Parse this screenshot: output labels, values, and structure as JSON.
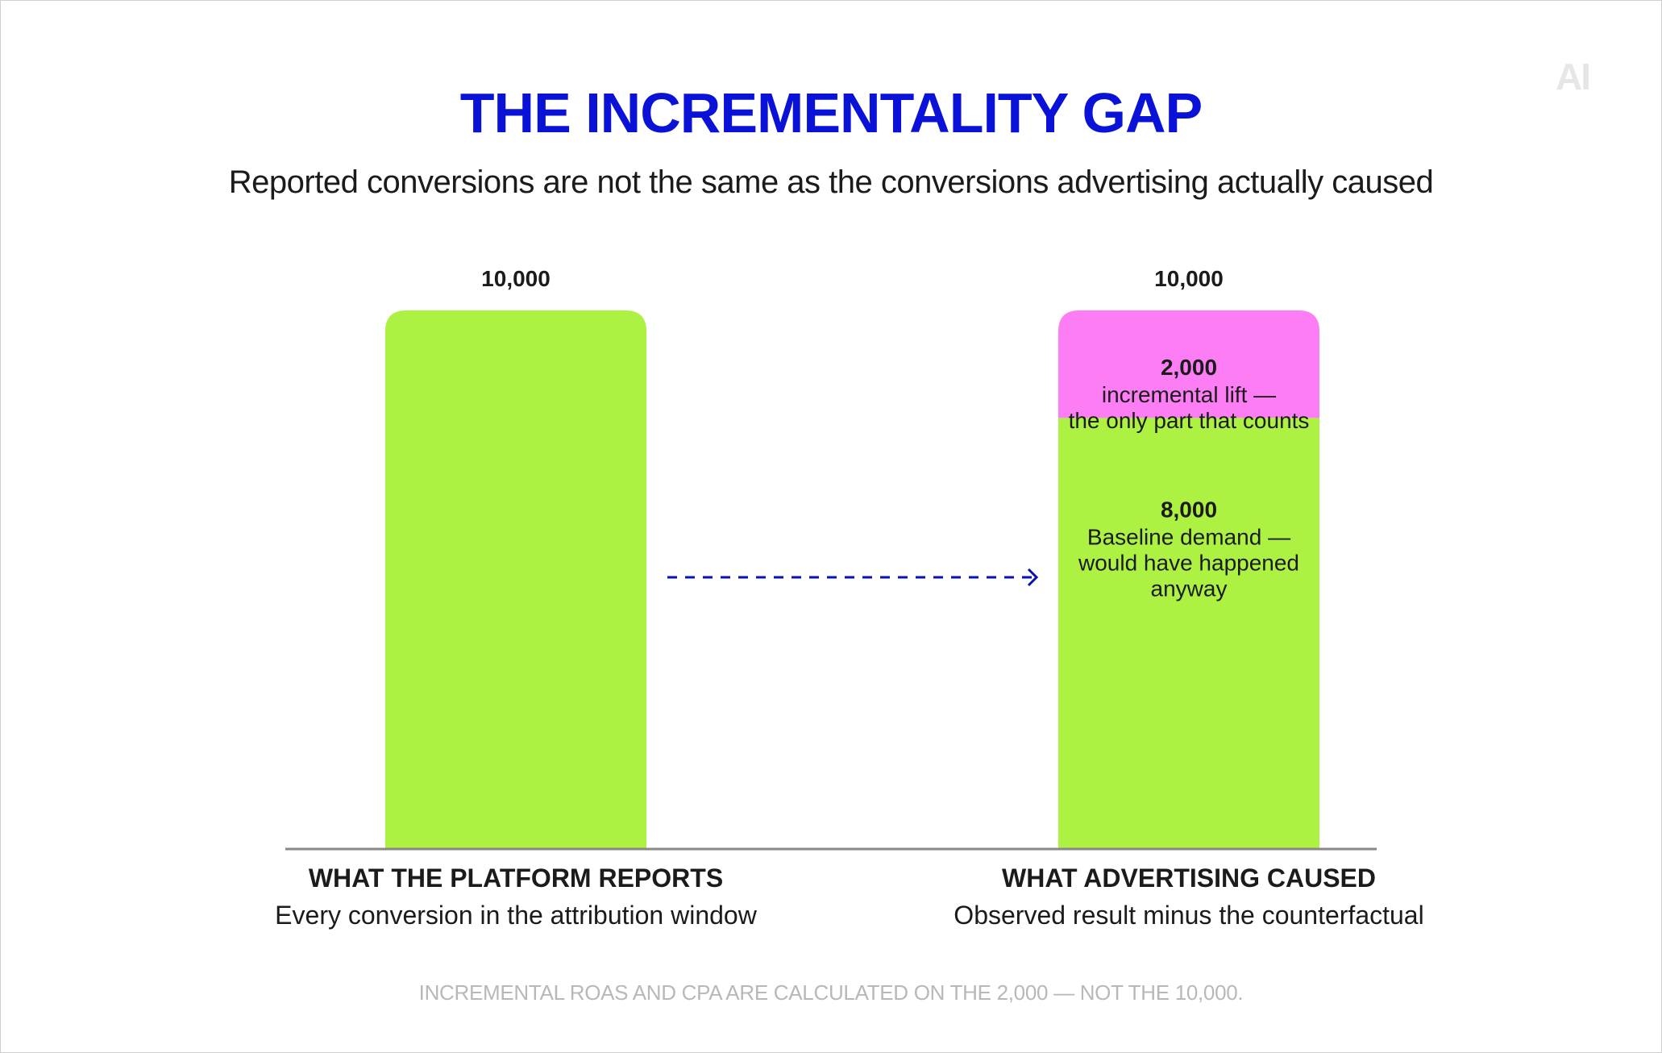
{
  "logo_text": "AI",
  "title": "THE INCREMENTALITY GAP",
  "subtitle": "Reported conversions are not the same as the conversions advertising actually caused",
  "footnote": "INCREMENTAL ROAS AND CPA ARE CALCULATED ON THE 2,000 — NOT THE 10,000.",
  "colors": {
    "title": "#0a12d8",
    "green": "#adf243",
    "pink": "#fd7df4",
    "arrow": "#0a12b0",
    "text": "#1b1b1b",
    "baseline": "#888888"
  },
  "chart_data": {
    "type": "bar",
    "ylim": [
      0,
      10000
    ],
    "grid": false,
    "categories": [
      {
        "name": "WHAT THE PLATFORM REPORTS",
        "description": "Every conversion in the attribution window",
        "total_label": "10,000",
        "segments": [
          {
            "value": 10000,
            "color": "#adf243",
            "value_label": "",
            "text_lines": []
          }
        ]
      },
      {
        "name": "WHAT ADVERTISING CAUSED",
        "description": "Observed result minus the counterfactual",
        "total_label": "10,000",
        "segments": [
          {
            "value": 8000,
            "color": "#adf243",
            "value_label": "8,000",
            "text_lines": [
              "Baseline demand —",
              "would have happened",
              "anyway"
            ]
          },
          {
            "value": 2000,
            "color": "#fd7df4",
            "value_label": "2,000",
            "text_lines": [
              "incremental lift —",
              "the only part that counts"
            ]
          }
        ]
      }
    ]
  }
}
